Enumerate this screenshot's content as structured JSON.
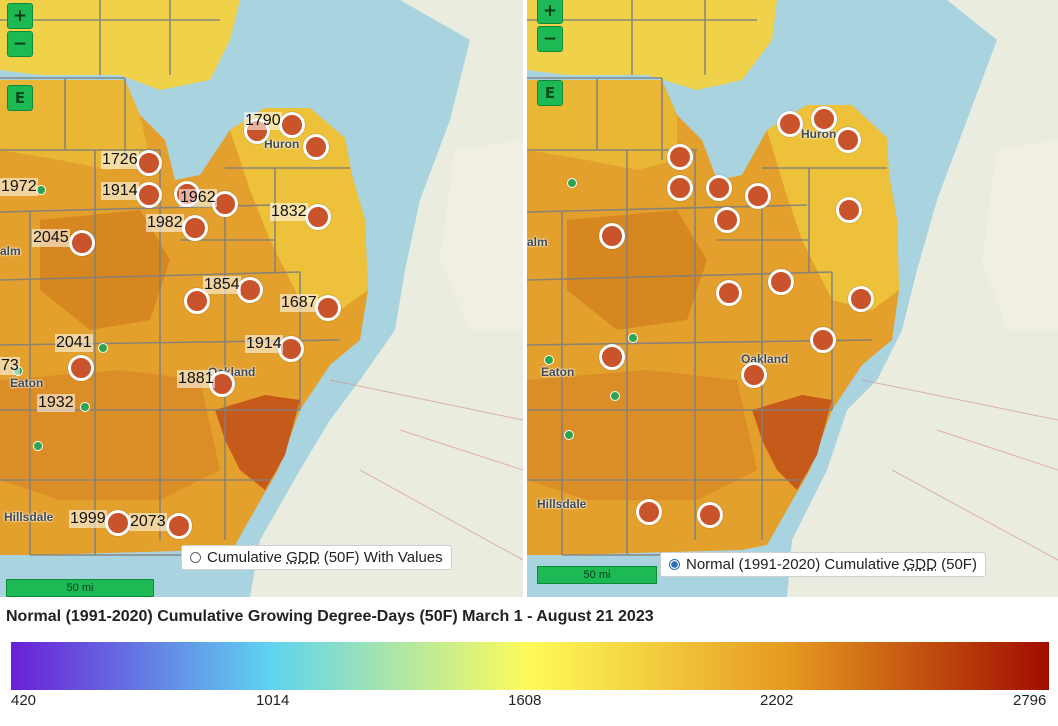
{
  "controls": {
    "zoom_in": "+",
    "zoom_out": "−",
    "extent": "E"
  },
  "places": {
    "huron": "Huron",
    "oakland": "Oakland",
    "eaton": "Eaton",
    "hillsdale": "Hillsdale",
    "palm": "alm",
    "palm_cut": "alm"
  },
  "left_map": {
    "values": [
      "1790",
      "1726",
      "1972",
      "1914",
      "1962",
      "1982",
      "1832",
      "2045",
      "1854",
      "1687",
      "2041",
      "1914",
      "73",
      "1881",
      "1932",
      "1999",
      "2073"
    ],
    "toggle_label_pre": "Cumulative ",
    "toggle_label_abbr": "GDD",
    "toggle_label_post": " (50F) With Values",
    "toggle_selected": false,
    "scale_label": "50 mi"
  },
  "right_map": {
    "toggle_label_pre": "Normal (1991-2020) Cumulative ",
    "toggle_label_abbr": "GDD",
    "toggle_label_post": " (50F)",
    "toggle_selected": true,
    "scale_label": "50 mi"
  },
  "legend": {
    "title": "Normal (1991-2020) Cumulative Growing Degree-Days (50F) March 1 - August 21 2023",
    "ticks": [
      "420",
      "1014",
      "1608",
      "2202",
      "2796"
    ],
    "colors": [
      "#6a1fd6",
      "#5fd3f0",
      "#fefb5a",
      "#e59920",
      "#a10c00"
    ]
  }
}
